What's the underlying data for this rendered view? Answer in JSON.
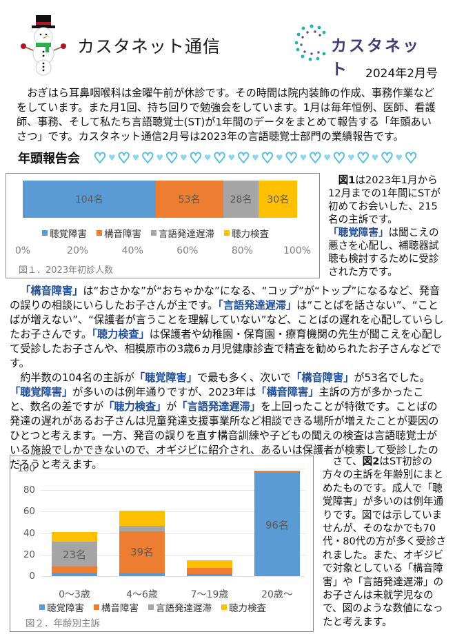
{
  "header": {
    "title": "カスタネット通信",
    "logo_text": "カスタネット",
    "issue": "2024年2月号",
    "snowman_icon": "snowman-icon",
    "logo_icon": "dotted-circle-logo-icon"
  },
  "intro": "おぎはら耳鼻咽喉科は金曜午前が休診です。その時間は院内装飾の作成、事務作業などをしています。また月1回、持ち回りで勉強会をしています。1月は毎年恒例、医師、看護師、事務、そして私たち言語聴覚士(ST)が1年間のデータをまとめて報告する「年頭あいさつ」です。カスタネット通信2月号は2023年の言語聴覚士部門の業績報告です。",
  "section": {
    "title": "年頭報告会",
    "decoration": "heart-garland"
  },
  "colors": {
    "hearing_disorder": "#5b9bd5",
    "articulation_disorder": "#ed7d31",
    "language_delay": "#a5a5a5",
    "hearing_test": "#ffc000",
    "highlight": "#1f4e9a"
  },
  "fig1": {
    "caption": "図１．2023年初診人数",
    "axis_ticks": [
      "0%",
      "20%",
      "40%",
      "60%",
      "80%",
      "100%"
    ],
    "legend": [
      "聴覚障害",
      "構音障害",
      "言語発達遅滞",
      "聴力検査"
    ],
    "segments": [
      {
        "label": "104名",
        "value": 104
      },
      {
        "label": "53名",
        "value": 53
      },
      {
        "label": "28名",
        "value": 28
      },
      {
        "label": "30名",
        "value": 30
      }
    ]
  },
  "side1": {
    "lead_bold": "図1",
    "text1": "は2023年1月から12月までの1年間にSTが初めてお会いした、215名の主訴です。",
    "hl": "「聴覚障害」",
    "text2": "は聞こえの悪さを心配し、補聴器試聴も検討するために受診された方です。"
  },
  "body2": {
    "p1": [
      {
        "t": "「構音障害」",
        "hl": true
      },
      {
        "t": "は“おさかな”が“おちゃかな”になる、“コップ”が“トップ”になるなど、発音の誤りの相談にいらしたお子さんが主です。",
        "hl": false
      },
      {
        "t": "「言語発達遅滞」",
        "hl": true
      },
      {
        "t": "は“ことばを話さない”、“ことばが増えない”、“保護者が言うことを理解していない”など、ことばの遅れを心配していらしたお子さんです。",
        "hl": false
      },
      {
        "t": "「聴力検査」",
        "hl": true
      },
      {
        "t": "は保護者や幼稚園・保育園・療育機関の先生が聞こえを心配して受診したお子さんや、相模原市の3歳6ヵ月児健康診査で精査を勧められたお子さんなどです。",
        "hl": false
      }
    ],
    "p2": [
      {
        "t": "約半数の104名の主訴が",
        "hl": false
      },
      {
        "t": "「聴覚障害」",
        "hl": true
      },
      {
        "t": "で最も多く、次いで",
        "hl": false
      },
      {
        "t": "「構音障害」",
        "hl": true
      },
      {
        "t": "が53名でした。",
        "hl": false
      },
      {
        "t": "「聴覚障害」",
        "hl": true
      },
      {
        "t": "が多いのは例年通りですが、2023年は",
        "hl": false
      },
      {
        "t": "「構音障害」",
        "hl": true
      },
      {
        "t": "主訴の方が多かったこと、数名の差ですが",
        "hl": false
      },
      {
        "t": "「聴力検査」",
        "hl": true
      },
      {
        "t": "が",
        "hl": false
      },
      {
        "t": "「言語発達遅滞」",
        "hl": true
      },
      {
        "t": "を上回ったことが特徴です。ことばの発達の遅れがあるお子さんは児童発達支援事業所など相談できる場所が増えたことが要因のひとつと考えます。一方、発音の誤りを直す構音訓練や子どもの聞えの検査は言語聴覚士がいる施設でしかできないので、オギジビに紹介され、あるいは保護者が検索して受診したのだろうと考えます。",
        "hl": false
      }
    ]
  },
  "fig2": {
    "caption": "図２．年齢別主訴",
    "legend": [
      "聴覚障害",
      "構音障害",
      "言語発達遅滞",
      "聴力検査"
    ],
    "y_ticks": [
      "100",
      "80",
      "60",
      "40",
      "20",
      "0"
    ]
  },
  "side2": {
    "pre": "さて、",
    "lead_bold": "図2",
    "text": "はST初診の方々の主訴を年齢別にまとめたものです。成人で「聴覚障害」が多いのは例年通りです。図では示していませんが、そのなかでも70代・80代の方が多く受診されました。また、オギジビで対象としている「構音障害」や「言語発達遅滞」のお子さんは未就学児なので、図のような数値になったと考えます。"
  },
  "chart_data": [
    {
      "type": "bar",
      "orientation": "horizontal-100%-stacked",
      "title": "図１．2023年初診人数",
      "categories": [
        "2023"
      ],
      "series": [
        {
          "name": "聴覚障害",
          "values": [
            104
          ],
          "label": "104名"
        },
        {
          "name": "構音障害",
          "values": [
            53
          ],
          "label": "53名"
        },
        {
          "name": "言語発達遅滞",
          "values": [
            28
          ],
          "label": "28名"
        },
        {
          "name": "聴力検査",
          "values": [
            30
          ],
          "label": "30名"
        }
      ],
      "xlabel": "",
      "ylabel": "",
      "xlim": [
        0,
        100
      ],
      "x_ticks": [
        "0%",
        "20%",
        "40%",
        "60%",
        "80%",
        "100%"
      ],
      "legend_position": "bottom",
      "grid": false
    },
    {
      "type": "bar",
      "orientation": "vertical-stacked",
      "title": "図２．年齢別主訴",
      "categories": [
        "0〜3歳",
        "4〜6歳",
        "7〜19歳",
        "20歳〜"
      ],
      "series": [
        {
          "name": "聴覚障害",
          "values": [
            3,
            3,
            2,
            96
          ]
        },
        {
          "name": "構音障害",
          "values": [
            6,
            39,
            6,
            2
          ]
        },
        {
          "name": "言語発達遅滞",
          "values": [
            23,
            5,
            0,
            0
          ]
        },
        {
          "name": "聴力検査",
          "values": [
            9,
            14,
            7,
            0
          ]
        }
      ],
      "data_labels": [
        "23名",
        "39名",
        "96名"
      ],
      "xlabel": "",
      "ylabel": "",
      "ylim": [
        0,
        100
      ],
      "y_ticks": [
        0,
        20,
        40,
        60,
        80,
        100
      ],
      "legend_position": "bottom",
      "grid": true
    }
  ]
}
